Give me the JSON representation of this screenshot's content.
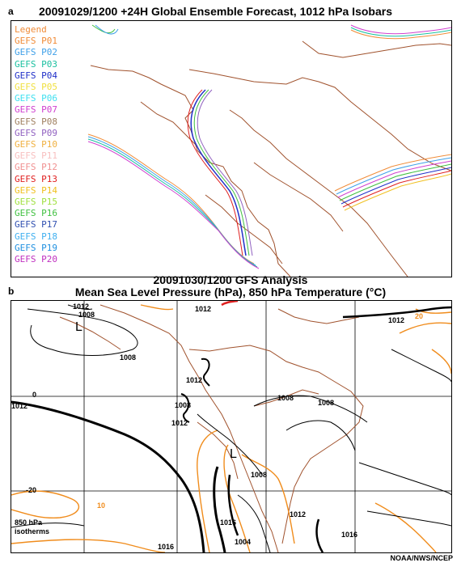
{
  "panel_a": {
    "letter": "a",
    "title": "20091029/1200  +24H  Global Ensemble Forecast, 1012 hPa Isobars",
    "legend_title": "Legend",
    "members": [
      {
        "label": "GEFS P01",
        "color": "#f08c38"
      },
      {
        "label": "GEFS P02",
        "color": "#3fa0e8"
      },
      {
        "label": "GEFS P03",
        "color": "#1cc0a0"
      },
      {
        "label": "GEFS P04",
        "color": "#2030c8"
      },
      {
        "label": "GEFS P05",
        "color": "#f0e040"
      },
      {
        "label": "GEFS P06",
        "color": "#40e0f0"
      },
      {
        "label": "GEFS P07",
        "color": "#d040d0"
      },
      {
        "label": "GEFS P08",
        "color": "#a08060"
      },
      {
        "label": "GEFS P09",
        "color": "#9060c0"
      },
      {
        "label": "GEFS P10",
        "color": "#f0b040"
      },
      {
        "label": "GEFS P11",
        "color": "#f8c0c0"
      },
      {
        "label": "GEFS P12",
        "color": "#f09090"
      },
      {
        "label": "GEFS P13",
        "color": "#e02020"
      },
      {
        "label": "GEFS P14",
        "color": "#f0c020"
      },
      {
        "label": "GEFS P15",
        "color": "#a0e040"
      },
      {
        "label": "GEFS P16",
        "color": "#40c040"
      },
      {
        "label": "GEFS P17",
        "color": "#3050b0"
      },
      {
        "label": "GEFS P18",
        "color": "#40b0f0"
      },
      {
        "label": "GEFS P19",
        "color": "#2090e0"
      },
      {
        "label": "GEFS P20",
        "color": "#c030c0"
      }
    ]
  },
  "panel_b": {
    "letter": "b",
    "title_line1": "20091030/1200  GFS Analysis",
    "title_line2": "Mean Sea Level Pressure (hPa), 850 hPa Temperature (°C)",
    "lat_labels": [
      "0",
      "-20"
    ],
    "isobar_labels": [
      "1012",
      "1008",
      "1012",
      "1012",
      "1012",
      "1008",
      "1008",
      "1012",
      "1008",
      "1012",
      "1016",
      "1004",
      "1016",
      "1016",
      "1012",
      "1008",
      "1008"
    ],
    "temp_labels": [
      "10",
      "20"
    ],
    "low_marker": "L",
    "isotherm_legend": [
      "850 hPa",
      "isotherms"
    ],
    "credit": "NOAA/NWS/NCEP",
    "colors": {
      "isobar": "#000000",
      "isotherm": "#f08c1c",
      "coast": "#a0522d",
      "grid": "#000000",
      "red_segment": "#e02020"
    }
  }
}
